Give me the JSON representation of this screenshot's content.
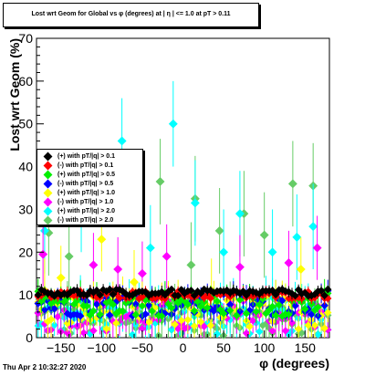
{
  "chart_data": {
    "type": "scatter",
    "title": "Lost wrt Geom for Global vs φ (degrees) at | η | <= 1.0 at pT > 0.11",
    "xlabel": "φ (degrees)",
    "ylabel": "Lost wrt Geom (%)",
    "xlim": [
      -180,
      180
    ],
    "ylim": [
      0,
      70
    ],
    "x_ticks": [
      -150,
      -100,
      -50,
      0,
      50,
      100,
      150
    ],
    "y_ticks": [
      0,
      10,
      20,
      30,
      40,
      50,
      60,
      70
    ],
    "grid": false,
    "legend_placement": "left, mid-height",
    "series": [
      {
        "name": "(+) with pT/|q| > 0.1",
        "color": "#000000",
        "level": 10.5,
        "spread": 0.8,
        "err": 1.0,
        "outliers": []
      },
      {
        "name": "(-) with pT/|q| > 0.1",
        "color": "#ff0000",
        "level": 10.0,
        "spread": 0.9,
        "err": 1.0,
        "outliers": []
      },
      {
        "name": "(+) with pT/|q| > 0.5",
        "color": "#00ee00",
        "level": 8.0,
        "spread": 3.0,
        "err": 2.0,
        "outliers": []
      },
      {
        "name": "(-) with pT/|q| > 0.5",
        "color": "#0000ff",
        "level": 8.0,
        "spread": 3.0,
        "err": 2.0,
        "outliers": []
      },
      {
        "name": "(+) with pT/|q| > 1.0",
        "color": "#ffff00",
        "level": 6.0,
        "spread": 4.0,
        "err": 3.0,
        "outliers": [
          [
            -170,
            11
          ],
          [
            -150,
            14
          ],
          [
            -100,
            23
          ],
          [
            -60,
            13
          ],
          [
            35,
            11
          ],
          [
            145,
            16
          ]
        ]
      },
      {
        "name": "(-) with pT/|q| > 1.0",
        "color": "#ff00ff",
        "level": 5.0,
        "spread": 4.0,
        "err": 3.0,
        "outliers": [
          [
            -172,
            19.5
          ],
          [
            -110,
            17
          ],
          [
            -80,
            16
          ],
          [
            -50,
            15
          ],
          [
            -20,
            19
          ],
          [
            70,
            16.5
          ],
          [
            130,
            17.5
          ],
          [
            165,
            21
          ]
        ]
      },
      {
        "name": "(+) with pT/|q| > 2.0",
        "color": "#00ffff",
        "level": 5.0,
        "spread": 4.5,
        "err": 4.0,
        "outliers": [
          [
            -170,
            25
          ],
          [
            -125,
            30
          ],
          [
            -75,
            46
          ],
          [
            -40,
            21
          ],
          [
            -12,
            50
          ],
          [
            15,
            31.5
          ],
          [
            50,
            20
          ],
          [
            70,
            29
          ],
          [
            110,
            20
          ],
          [
            140,
            23.5
          ],
          [
            160,
            26
          ]
        ]
      },
      {
        "name": "(-) with pT/|q| > 2.0",
        "color": "#66cc66",
        "level": 4.5,
        "spread": 4.5,
        "err": 4.0,
        "outliers": [
          [
            -165,
            24.5
          ],
          [
            -140,
            19
          ],
          [
            -28,
            36.5
          ],
          [
            10,
            17
          ],
          [
            15,
            32.5
          ],
          [
            45,
            25
          ],
          [
            75,
            29
          ],
          [
            100,
            24
          ],
          [
            135,
            36
          ],
          [
            160,
            35.5
          ]
        ]
      }
    ]
  },
  "footer": {
    "timestamp": "Thu Apr  2 10:32:27 2020"
  }
}
